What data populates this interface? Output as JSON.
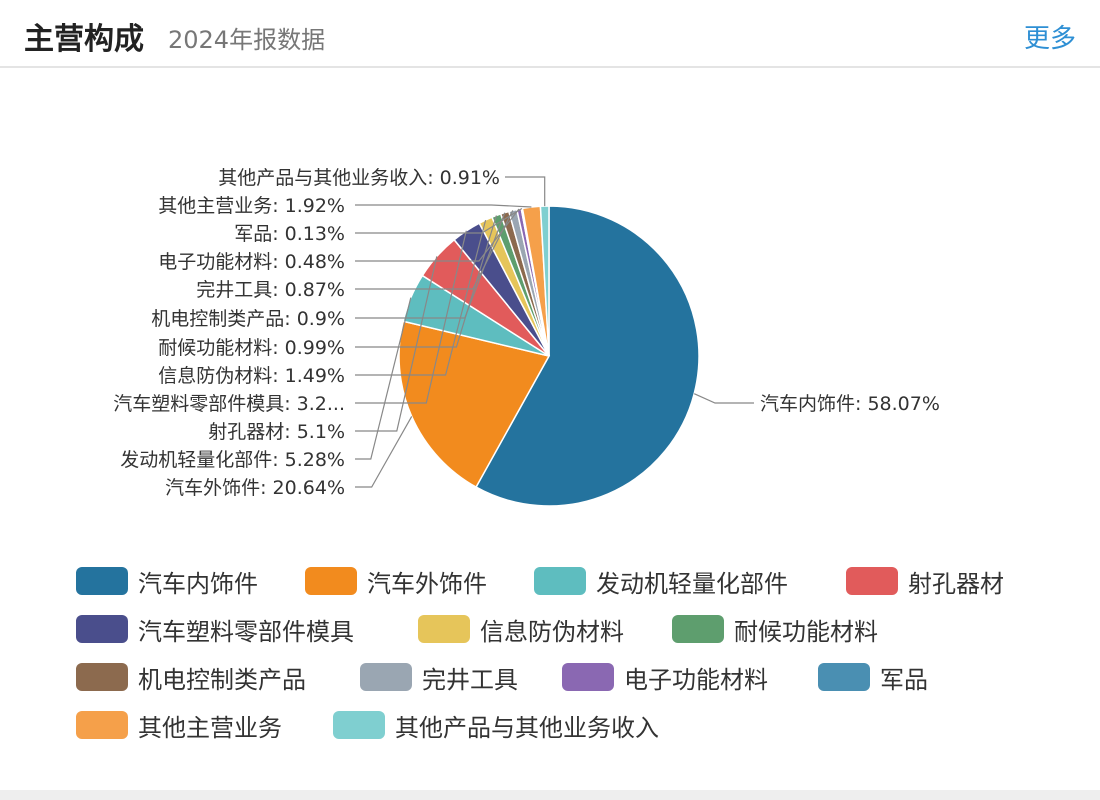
{
  "header": {
    "title": "主营构成",
    "subtitle": "2024年报数据",
    "more_label": "更多"
  },
  "chart_data": {
    "type": "pie",
    "slices": [
      {
        "name": "汽车内饰件",
        "value": 58.07,
        "label": "汽车内饰件: 58.07%",
        "color": "#24739e"
      },
      {
        "name": "汽车外饰件",
        "value": 20.64,
        "label": "汽车外饰件: 20.64%",
        "color": "#f28b1e"
      },
      {
        "name": "发动机轻量化部件",
        "value": 5.28,
        "label": "发动机轻量化部件: 5.28%",
        "color": "#5ebdbf"
      },
      {
        "name": "射孔器材",
        "value": 5.1,
        "label": "射孔器材: 5.1%",
        "color": "#e15b5b"
      },
      {
        "name": "汽车塑料零部件模具",
        "value": 3.2,
        "label": "汽车塑料零部件模具: 3.2...",
        "color": "#4a4e8c"
      },
      {
        "name": "信息防伪材料",
        "value": 1.49,
        "label": "信息防伪材料: 1.49%",
        "color": "#e6c55a"
      },
      {
        "name": "耐候功能材料",
        "value": 0.99,
        "label": "耐候功能材料: 0.99%",
        "color": "#5e9e6e"
      },
      {
        "name": "机电控制类产品",
        "value": 0.9,
        "label": "机电控制类产品: 0.9%",
        "color": "#8c6a4e"
      },
      {
        "name": "完井工具",
        "value": 0.87,
        "label": "完井工具: 0.87%",
        "color": "#9aa6b2"
      },
      {
        "name": "电子功能材料",
        "value": 0.48,
        "label": "电子功能材料: 0.48%",
        "color": "#8a68b2"
      },
      {
        "name": "军品",
        "value": 0.13,
        "label": "军品: 0.13%",
        "color": "#4a8fb2"
      },
      {
        "name": "其他主营业务",
        "value": 1.92,
        "label": "其他主营业务: 1.92%",
        "color": "#f5a04a"
      },
      {
        "name": "其他产品与其他业务收入",
        "value": 0.91,
        "label": "其他产品与其他业务收入: 0.91%",
        "color": "#7fcfd0"
      }
    ],
    "legend_placement": "bottom"
  }
}
